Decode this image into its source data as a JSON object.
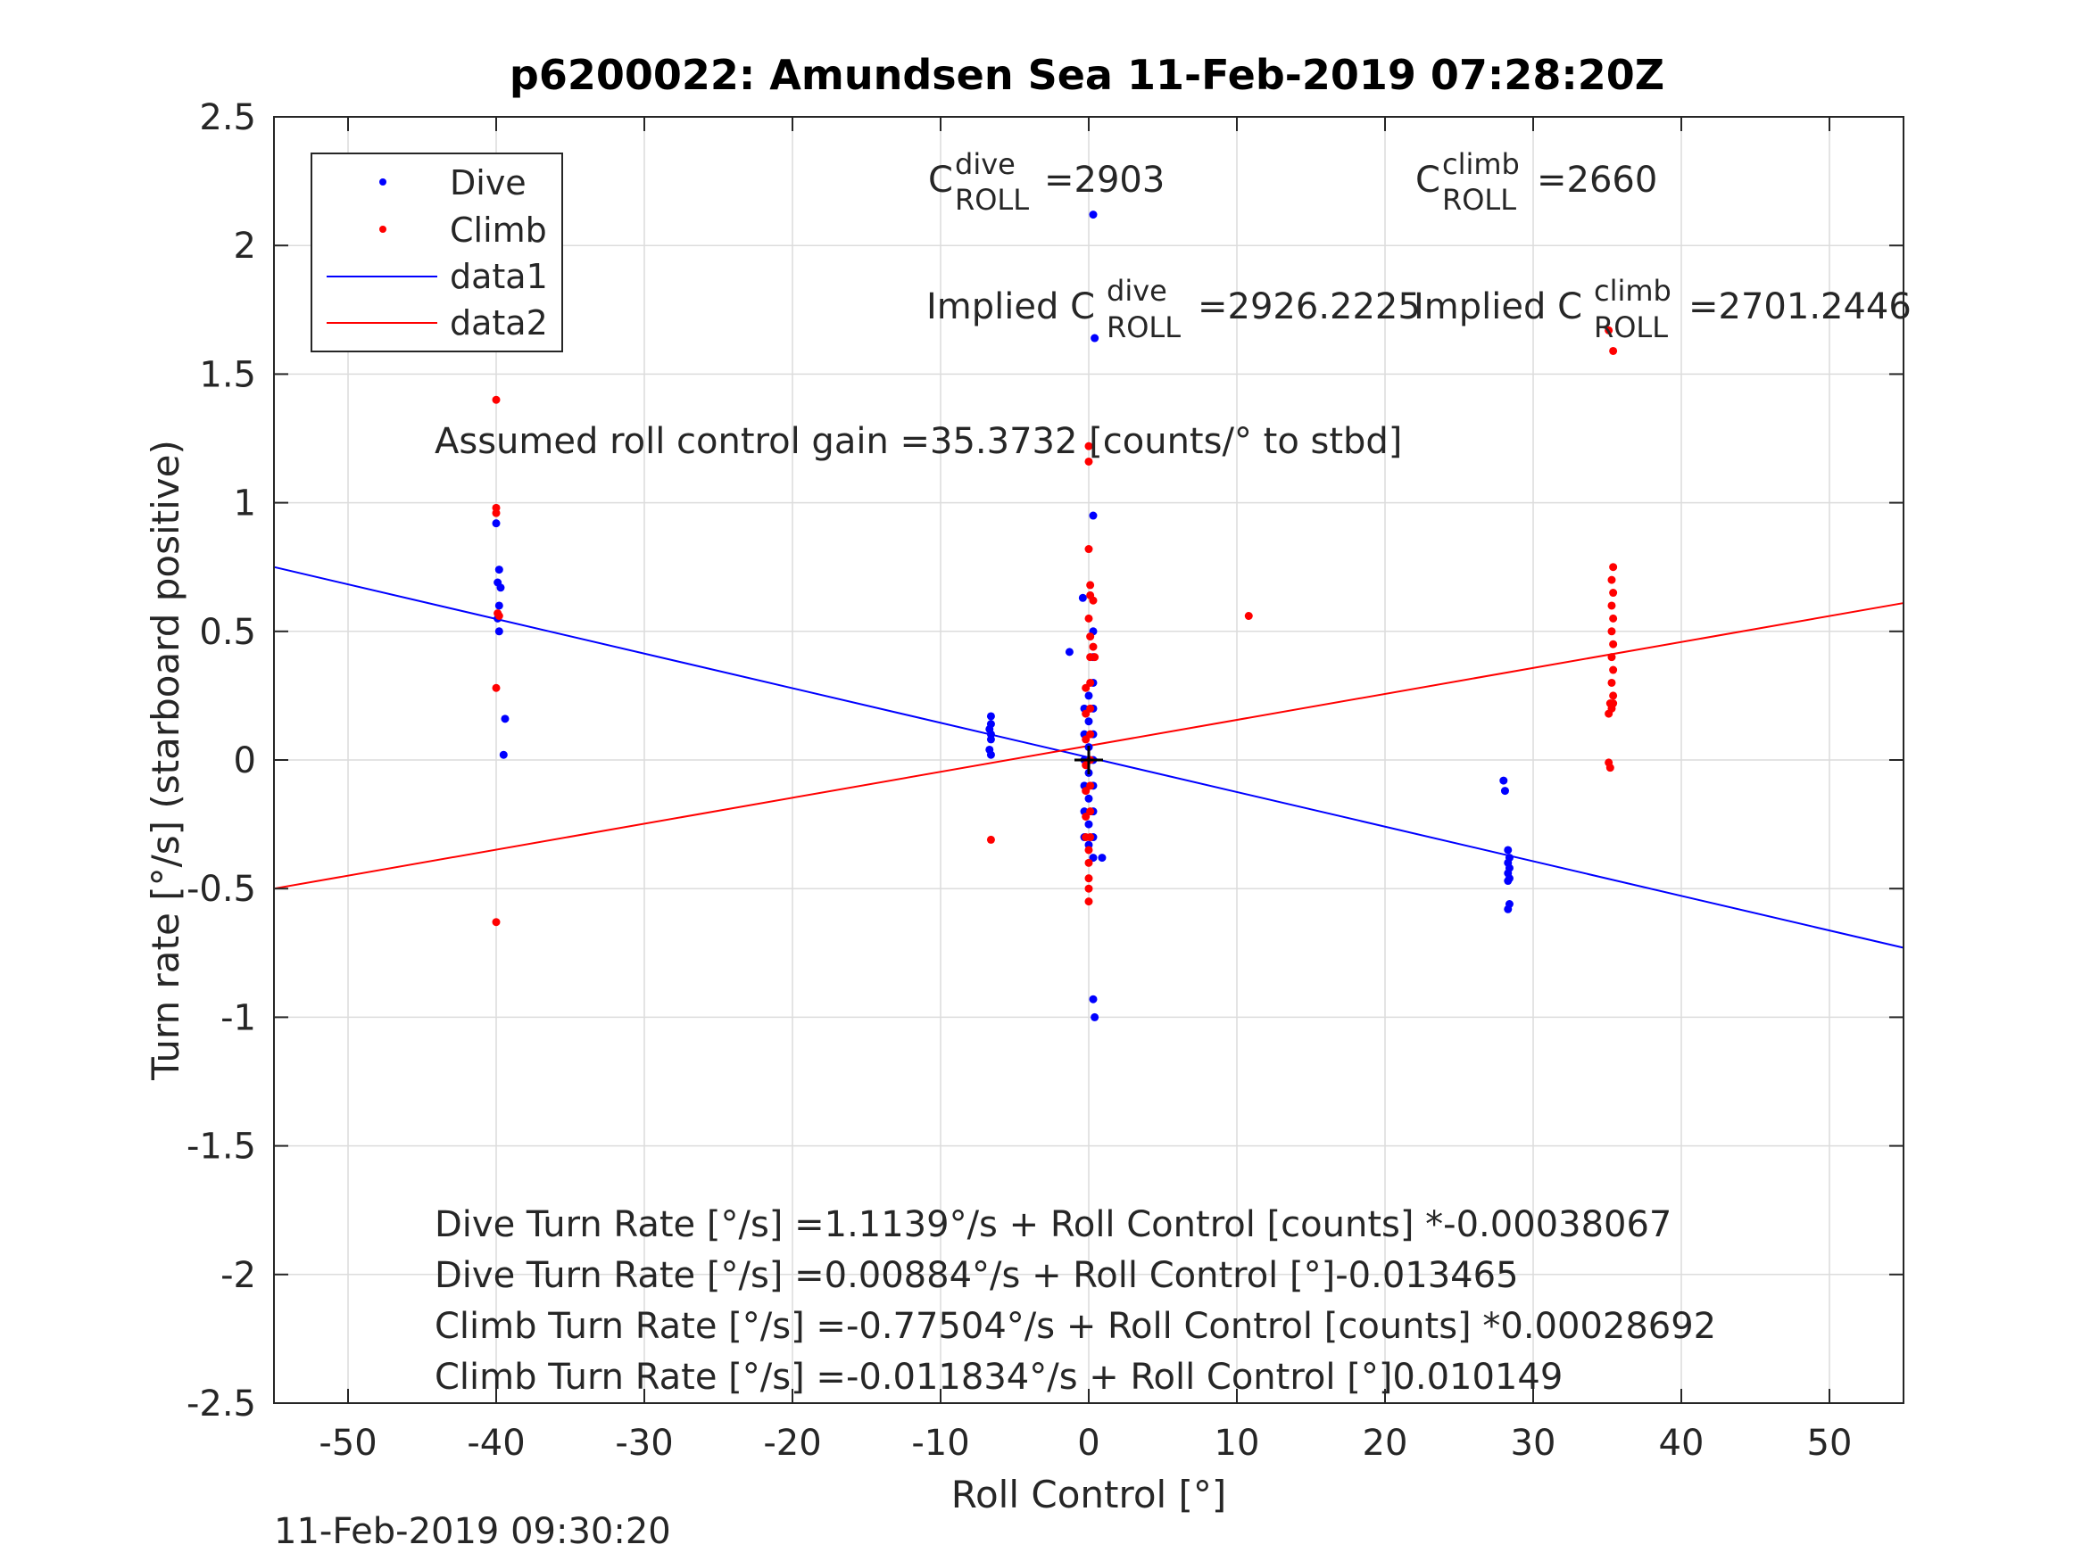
{
  "chart_data": {
    "type": "scatter",
    "title": "p6200022: Amundsen Sea 11-Feb-2019 07:28:20Z",
    "xlabel": "Roll Control [°]",
    "ylabel": "Turn rate [°/s] (starboard positive)",
    "xlim": [
      -55,
      55
    ],
    "ylim": [
      -2.5,
      2.5
    ],
    "xticks": [
      -50,
      -40,
      -30,
      -20,
      -10,
      0,
      10,
      20,
      30,
      40,
      50
    ],
    "yticks": [
      -2.5,
      -2,
      -1.5,
      -1,
      -0.5,
      0,
      0.5,
      1,
      1.5,
      2,
      2.5
    ],
    "xtick_labels": [
      "-50",
      "-40",
      "-30",
      "-20",
      "-10",
      "0",
      "10",
      "20",
      "30",
      "40",
      "50"
    ],
    "ytick_labels": [
      "-2.5",
      "-2",
      "-1.5",
      "-1",
      "-0.5",
      "0",
      "0.5",
      "1",
      "1.5",
      "2",
      "2.5"
    ],
    "grid": true,
    "legend_position": "top-left",
    "legend": [
      {
        "label": "Dive",
        "kind": "marker",
        "color": "#0000ff"
      },
      {
        "label": "Climb",
        "kind": "marker",
        "color": "#ff0000"
      },
      {
        "label": "data1",
        "kind": "line",
        "color": "#0000ff"
      },
      {
        "label": "data2",
        "kind": "line",
        "color": "#ff0000"
      }
    ],
    "series": [
      {
        "name": "Dive",
        "color": "#0000ff",
        "points": [
          [
            -40,
            0.92
          ],
          [
            -39.8,
            0.74
          ],
          [
            -39.9,
            0.69
          ],
          [
            -39.7,
            0.67
          ],
          [
            -39.8,
            0.6
          ],
          [
            -39.9,
            0.55
          ],
          [
            -39.8,
            0.5
          ],
          [
            -39.4,
            0.16
          ],
          [
            -39.5,
            0.02
          ],
          [
            -6.6,
            0.17
          ],
          [
            -6.6,
            0.14
          ],
          [
            -6.7,
            0.12
          ],
          [
            -6.6,
            0.1
          ],
          [
            -6.6,
            0.08
          ],
          [
            -6.7,
            0.04
          ],
          [
            -6.6,
            0.02
          ],
          [
            -1.3,
            0.42
          ],
          [
            -0.4,
            0.63
          ],
          [
            0.3,
            2.12
          ],
          [
            0.4,
            1.64
          ],
          [
            0.3,
            0.95
          ],
          [
            -0.3,
            0.2
          ],
          [
            -0.3,
            0.1
          ],
          [
            -0.3,
            0.0
          ],
          [
            -0.3,
            -0.1
          ],
          [
            -0.3,
            -0.2
          ],
          [
            -0.3,
            -0.3
          ],
          [
            0.0,
            0.25
          ],
          [
            0.0,
            0.15
          ],
          [
            0.0,
            0.05
          ],
          [
            0.0,
            -0.05
          ],
          [
            0.0,
            -0.15
          ],
          [
            0.0,
            -0.25
          ],
          [
            0.0,
            -0.33
          ],
          [
            0.3,
            0.5
          ],
          [
            0.3,
            0.4
          ],
          [
            0.3,
            0.3
          ],
          [
            0.3,
            0.2
          ],
          [
            0.3,
            0.1
          ],
          [
            0.3,
            0.0
          ],
          [
            0.3,
            -0.1
          ],
          [
            0.3,
            -0.2
          ],
          [
            0.3,
            -0.3
          ],
          [
            0.3,
            -0.38
          ],
          [
            0.9,
            -0.38
          ],
          [
            0.3,
            -0.93
          ],
          [
            0.4,
            -1.0
          ],
          [
            28.0,
            -0.08
          ],
          [
            28.1,
            -0.12
          ],
          [
            28.3,
            -0.35
          ],
          [
            28.4,
            -0.38
          ],
          [
            28.3,
            -0.4
          ],
          [
            28.4,
            -0.42
          ],
          [
            28.3,
            -0.44
          ],
          [
            28.4,
            -0.46
          ],
          [
            28.3,
            -0.47
          ],
          [
            28.4,
            -0.56
          ],
          [
            28.3,
            -0.58
          ]
        ]
      },
      {
        "name": "Climb",
        "color": "#ff0000",
        "points": [
          [
            -40,
            1.4
          ],
          [
            -40,
            0.98
          ],
          [
            -40,
            0.96
          ],
          [
            -39.9,
            0.57
          ],
          [
            -39.8,
            0.56
          ],
          [
            -40,
            0.28
          ],
          [
            -40,
            -0.63
          ],
          [
            -6.6,
            -0.31
          ],
          [
            10.8,
            0.56
          ],
          [
            -0.2,
            0.28
          ],
          [
            -0.2,
            0.18
          ],
          [
            -0.2,
            0.08
          ],
          [
            -0.2,
            -0.02
          ],
          [
            -0.2,
            -0.12
          ],
          [
            -0.2,
            -0.22
          ],
          [
            -0.2,
            -0.3
          ],
          [
            0.0,
            1.22
          ],
          [
            0.0,
            1.16
          ],
          [
            0.0,
            0.82
          ],
          [
            0.1,
            0.68
          ],
          [
            0.1,
            0.64
          ],
          [
            0.0,
            0.55
          ],
          [
            0.1,
            0.48
          ],
          [
            0.1,
            0.4
          ],
          [
            0.1,
            0.3
          ],
          [
            0.1,
            0.2
          ],
          [
            0.1,
            0.1
          ],
          [
            0.1,
            0.0
          ],
          [
            0.1,
            -0.1
          ],
          [
            0.1,
            -0.2
          ],
          [
            0.1,
            -0.3
          ],
          [
            0.0,
            -0.35
          ],
          [
            0.0,
            -0.4
          ],
          [
            0.0,
            -0.46
          ],
          [
            0.0,
            -0.5
          ],
          [
            0.0,
            -0.55
          ],
          [
            0.3,
            0.44
          ],
          [
            0.4,
            0.4
          ],
          [
            0.3,
            0.62
          ],
          [
            35.1,
            1.67
          ],
          [
            35.4,
            1.59
          ],
          [
            35.4,
            0.75
          ],
          [
            35.3,
            0.7
          ],
          [
            35.4,
            0.65
          ],
          [
            35.3,
            0.6
          ],
          [
            35.4,
            0.55
          ],
          [
            35.3,
            0.5
          ],
          [
            35.4,
            0.45
          ],
          [
            35.3,
            0.4
          ],
          [
            35.4,
            0.35
          ],
          [
            35.3,
            0.3
          ],
          [
            35.4,
            0.25
          ],
          [
            35.2,
            0.22
          ],
          [
            35.1,
            0.18
          ],
          [
            35.3,
            0.2
          ],
          [
            35.4,
            0.22
          ],
          [
            35.1,
            -0.01
          ],
          [
            35.2,
            -0.03
          ]
        ]
      }
    ],
    "fit_lines": [
      {
        "name": "data1",
        "color": "#0000ff",
        "x": [
          -55,
          55
        ],
        "y": [
          0.75,
          -0.73
        ]
      },
      {
        "name": "data2",
        "color": "#ff0000",
        "x": [
          -55,
          55
        ],
        "y": [
          -0.5,
          0.61
        ]
      }
    ],
    "origin_marker": {
      "x": 0,
      "y": 0,
      "symbol": "+"
    },
    "annotations": {
      "c_dive_base": "C",
      "c_dive_sup": "dive",
      "c_dive_sub": "ROLL",
      "c_dive_value": "=2903",
      "c_climb_base": "C",
      "c_climb_sup": "climb",
      "c_climb_sub": "ROLL",
      "c_climb_value": "=2660",
      "implied_dive_prefix": "Implied C",
      "implied_dive_sup": "dive",
      "implied_dive_sub": "ROLL",
      "implied_dive_value": "=2926.2225",
      "implied_climb_prefix": "Implied C",
      "implied_climb_sup": "climb",
      "implied_climb_sub": "ROLL",
      "implied_climb_value": "=2701.2446",
      "gain_text": "Assumed roll control gain =35.3732 [counts/° to stbd]",
      "eq1": "Dive Turn Rate [°/s] =1.1139°/s + Roll Control [counts] *-0.00038067",
      "eq2": "Dive Turn Rate [°/s] =0.00884°/s + Roll Control [°]-0.013465",
      "eq3": "Climb Turn Rate [°/s] =-0.77504°/s + Roll Control [counts] *0.00028692",
      "eq4": "Climb Turn Rate [°/s] =-0.011834°/s + Roll Control [°]0.010149"
    }
  },
  "timestamp": "11-Feb-2019 09:30:20"
}
